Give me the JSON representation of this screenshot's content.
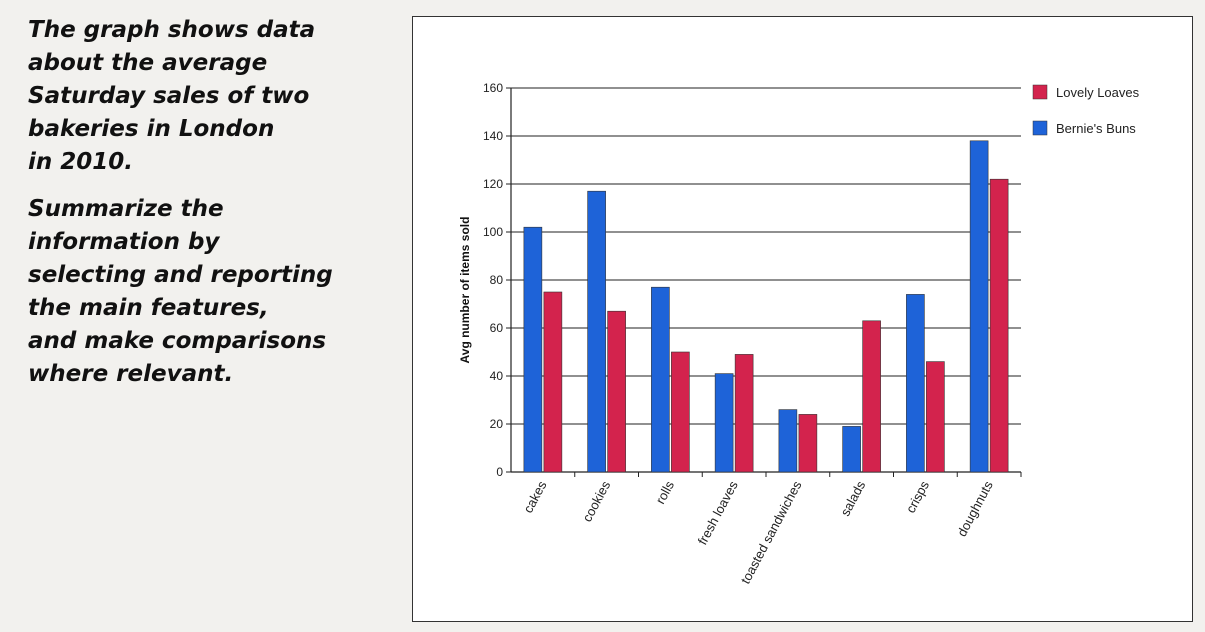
{
  "prompt": {
    "paragraph1": [
      "The graph shows data",
      "about the average",
      "Saturday sales of two",
      "bakeries in London",
      "in 2010."
    ],
    "paragraph2": [
      "Summarize the",
      "information by",
      "selecting and reporting",
      "the main features,",
      "and make comparisons",
      "where relevant."
    ]
  },
  "chart_data": {
    "type": "bar",
    "title": "",
    "xlabel": "",
    "ylabel": "Avg number of items sold",
    "ylim": [
      0,
      160
    ],
    "yticks": [
      0,
      20,
      40,
      60,
      80,
      100,
      120,
      140,
      160
    ],
    "grid": true,
    "legend_position": "top-right",
    "categories": [
      "cakes",
      "cookies",
      "rolls",
      "fresh loaves",
      "toasted sandwiches",
      "salads",
      "crisps",
      "doughnuts"
    ],
    "series": [
      {
        "name": "Bernie's Buns",
        "color": "#1e63d8",
        "values": [
          102,
          117,
          77,
          41,
          26,
          19,
          74,
          138
        ]
      },
      {
        "name": "Lovely Loaves",
        "color": "#d3234d",
        "values": [
          75,
          67,
          50,
          49,
          24,
          63,
          46,
          122
        ]
      }
    ],
    "legend_order": [
      "Lovely Loaves",
      "Bernie's Buns"
    ]
  }
}
